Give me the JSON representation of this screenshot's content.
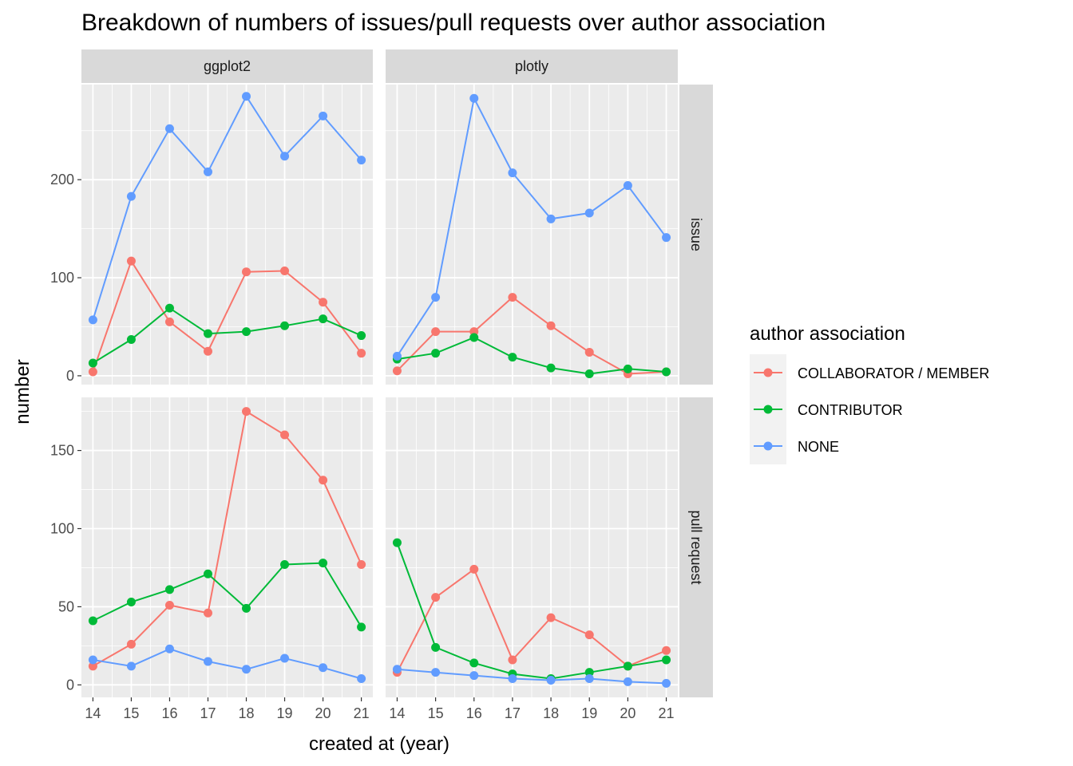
{
  "chart_data": {
    "type": "line",
    "title": "Breakdown of numbers of issues/pull requests over author association",
    "xlabel": "created at (year)",
    "ylabel": "number",
    "x": [
      "14",
      "15",
      "16",
      "17",
      "18",
      "19",
      "20",
      "21"
    ],
    "facet_columns": [
      "ggplot2",
      "plotly"
    ],
    "facet_rows": [
      "issue",
      "pull request"
    ],
    "row_scales": {
      "issue": {
        "ylim": [
          -9,
          297
        ],
        "ticks": [
          "0",
          "100",
          "200"
        ]
      },
      "pull request": {
        "ylim": [
          -8,
          184
        ],
        "ticks": [
          "0",
          "50",
          "100",
          "150"
        ]
      }
    },
    "legend": {
      "title": "author association",
      "position": "right",
      "entries": [
        {
          "name": "COLLABORATOR / MEMBER",
          "color": "#F8766D"
        },
        {
          "name": "CONTRIBUTOR",
          "color": "#00BA38"
        },
        {
          "name": "NONE",
          "color": "#619CFF"
        }
      ]
    },
    "panels": [
      {
        "column": "ggplot2",
        "row": "issue",
        "series": [
          {
            "name": "COLLABORATOR / MEMBER",
            "values": [
              4,
              117,
              55,
              25,
              106,
              107,
              75,
              23
            ]
          },
          {
            "name": "CONTRIBUTOR",
            "values": [
              13,
              37,
              69,
              43,
              45,
              51,
              58,
              41
            ]
          },
          {
            "name": "NONE",
            "values": [
              57,
              183,
              252,
              208,
              285,
              224,
              265,
              220
            ]
          }
        ]
      },
      {
        "column": "plotly",
        "row": "issue",
        "series": [
          {
            "name": "COLLABORATOR / MEMBER",
            "values": [
              5,
              45,
              45,
              80,
              51,
              24,
              2,
              4
            ]
          },
          {
            "name": "CONTRIBUTOR",
            "values": [
              17,
              23,
              39,
              19,
              8,
              2,
              7,
              4
            ]
          },
          {
            "name": "NONE",
            "values": [
              20,
              80,
              283,
              207,
              160,
              166,
              194,
              141
            ]
          }
        ]
      },
      {
        "column": "ggplot2",
        "row": "pull request",
        "series": [
          {
            "name": "COLLABORATOR / MEMBER",
            "values": [
              12,
              26,
              51,
              46,
              175,
              160,
              131,
              77
            ]
          },
          {
            "name": "CONTRIBUTOR",
            "values": [
              41,
              53,
              61,
              71,
              49,
              77,
              78,
              37
            ]
          },
          {
            "name": "NONE",
            "values": [
              16,
              12,
              23,
              15,
              10,
              17,
              11,
              4
            ]
          }
        ]
      },
      {
        "column": "plotly",
        "row": "pull request",
        "series": [
          {
            "name": "COLLABORATOR / MEMBER",
            "values": [
              8,
              56,
              74,
              16,
              43,
              32,
              12,
              22
            ]
          },
          {
            "name": "CONTRIBUTOR",
            "values": [
              91,
              24,
              14,
              7,
              4,
              8,
              12,
              16
            ]
          },
          {
            "name": "NONE",
            "values": [
              10,
              8,
              6,
              4,
              3,
              4,
              2,
              1
            ]
          }
        ]
      }
    ],
    "grid": true,
    "background_color": "#EBEBEB",
    "strip_color": "#D9D9D9"
  }
}
